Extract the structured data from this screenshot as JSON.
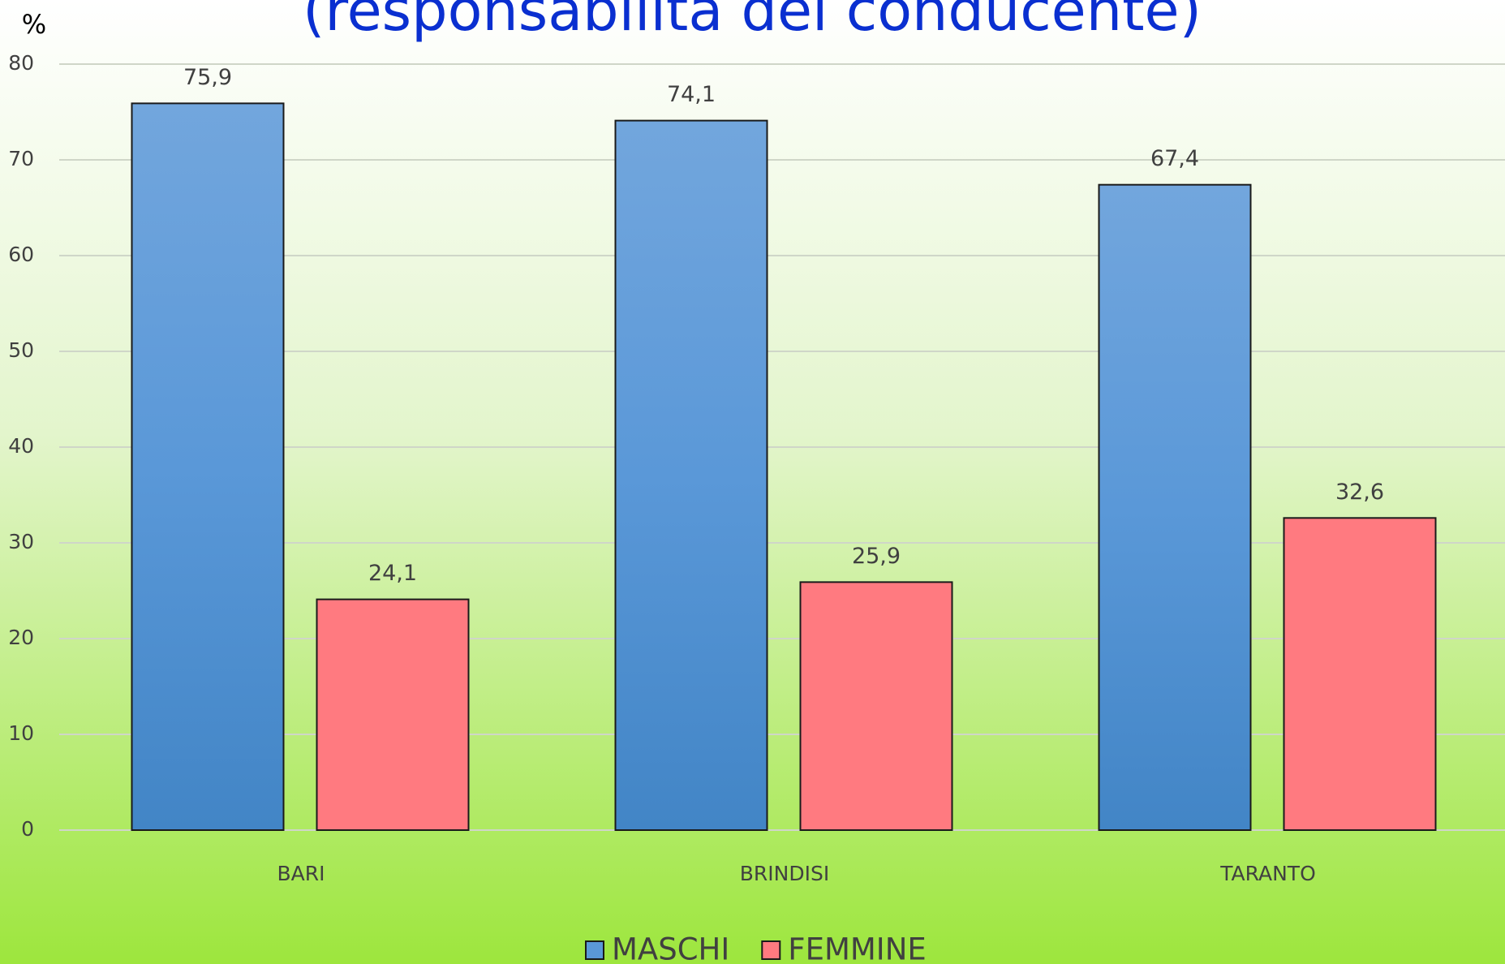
{
  "chart_data": {
    "type": "bar",
    "title": "(responsabilità del conducente)",
    "y_label": "%",
    "categories": [
      "BARI",
      "BRINDISI",
      "TARANTO"
    ],
    "series": [
      {
        "name": "MASCHI",
        "color": "#5a98d8",
        "values": [
          75.9,
          74.1,
          67.4
        ],
        "value_labels": [
          "75,9",
          "74,1",
          "67,4"
        ]
      },
      {
        "name": "FEMMINE",
        "color": "#ff7a80",
        "values": [
          24.1,
          25.9,
          32.6
        ],
        "value_labels": [
          "24,1",
          "25,9",
          "32,6"
        ]
      }
    ],
    "ylim": [
      0,
      80
    ],
    "yticks": [
      0,
      10,
      20,
      30,
      40,
      50,
      60,
      70,
      80
    ],
    "grid": true,
    "legend": "bottom"
  }
}
